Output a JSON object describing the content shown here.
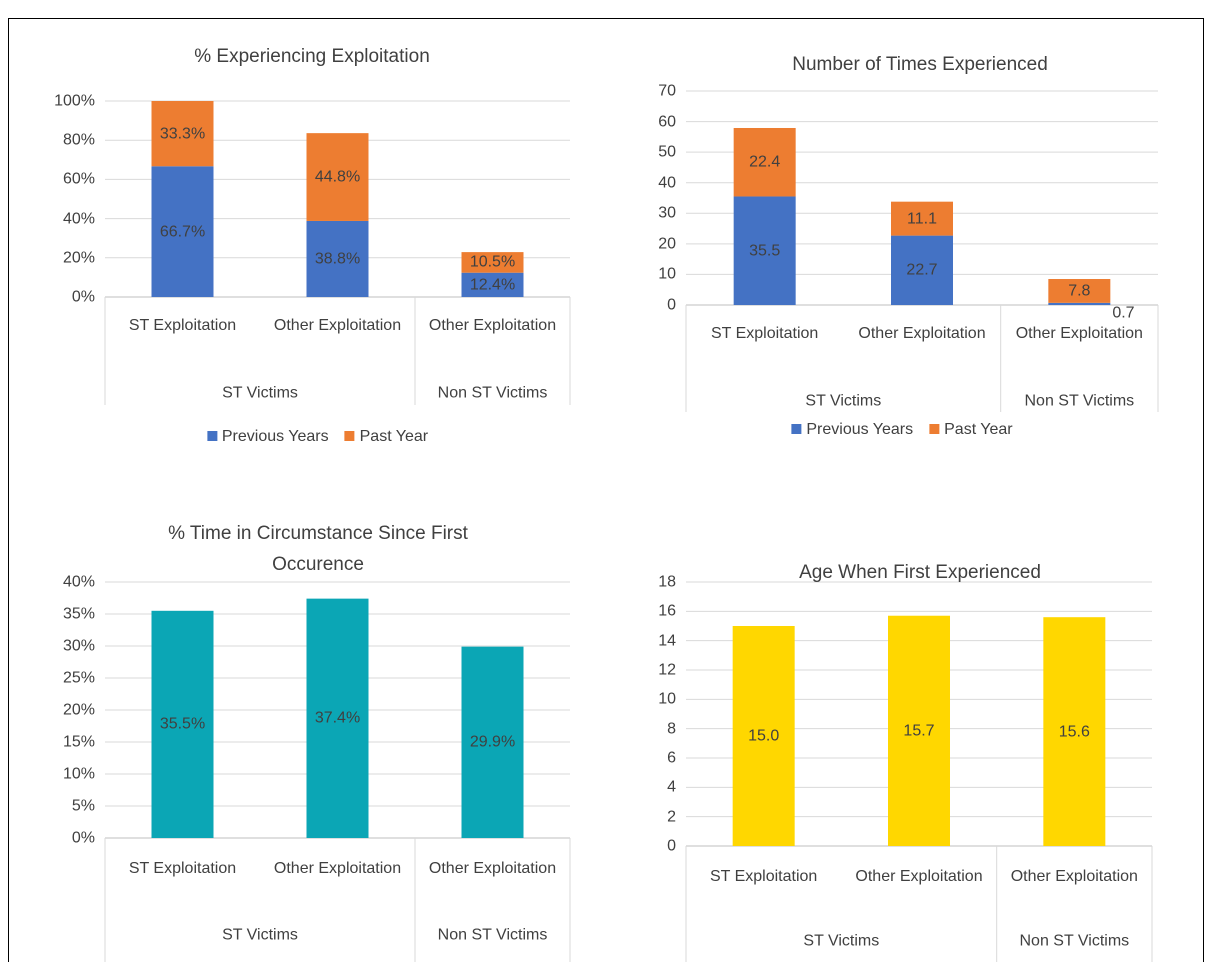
{
  "chart_data": [
    {
      "type": "stacked_bar",
      "title": "% Experiencing Exploitation",
      "categories": [
        "ST Exploitation",
        "Other Exploitation",
        "Other Exploitation"
      ],
      "category_groups": [
        "ST Victims",
        "ST Victims",
        "Non ST Victims"
      ],
      "series": [
        {
          "name": "Previous Years",
          "color": "#4472c4",
          "values": [
            66.7,
            38.8,
            12.4
          ],
          "value_labels": [
            "66.7%",
            "38.8%",
            "12.4%"
          ]
        },
        {
          "name": "Past Year",
          "color": "#ed7d31",
          "values": [
            33.3,
            44.8,
            10.5
          ],
          "value_labels": [
            "33.3%",
            "44.8%",
            "10.5%"
          ]
        }
      ],
      "ylim": [
        0,
        100
      ],
      "yticks": [
        {
          "value": 0,
          "label": "0%"
        },
        {
          "value": 20,
          "label": "20%"
        },
        {
          "value": 40,
          "label": "40%"
        },
        {
          "value": 60,
          "label": "60%"
        },
        {
          "value": 80,
          "label": "80%"
        },
        {
          "value": 100,
          "label": "100%"
        }
      ],
      "grid": true,
      "legend": "bottom"
    },
    {
      "type": "stacked_bar",
      "title": "Number of Times Experienced",
      "categories": [
        "ST Exploitation",
        "Other Exploitation",
        "Other Exploitation"
      ],
      "category_groups": [
        "ST Victims",
        "ST Victims",
        "Non ST Victims"
      ],
      "series": [
        {
          "name": "Previous Years",
          "color": "#4472c4",
          "values": [
            35.5,
            22.7,
            0.7
          ]
        },
        {
          "name": "Past Year",
          "color": "#ed7d31",
          "values": [
            22.4,
            11.1,
            7.8
          ]
        }
      ],
      "ylim": [
        0,
        70
      ],
      "yticks": [
        0,
        10,
        20,
        30,
        40,
        50,
        60,
        70
      ],
      "grid": true,
      "legend": "bottom"
    },
    {
      "type": "bar",
      "title": "% Time in Circumstance Since First Occurence",
      "categories": [
        "ST Exploitation",
        "Other Exploitation",
        "Other Exploitation"
      ],
      "category_groups": [
        "ST Victims",
        "ST Victims",
        "Non ST Victims"
      ],
      "values": [
        35.5,
        37.4,
        29.9
      ],
      "value_labels": [
        "35.5%",
        "37.4%",
        "29.9%"
      ],
      "color": "#0ba6b5",
      "ylim": [
        0,
        40
      ],
      "yticks": [
        {
          "value": 0,
          "label": "0%"
        },
        {
          "value": 5,
          "label": "5%"
        },
        {
          "value": 10,
          "label": "10%"
        },
        {
          "value": 15,
          "label": "15%"
        },
        {
          "value": 20,
          "label": "20%"
        },
        {
          "value": 25,
          "label": "25%"
        },
        {
          "value": 30,
          "label": "30%"
        },
        {
          "value": 35,
          "label": "35%"
        },
        {
          "value": 40,
          "label": "40%"
        }
      ],
      "grid": true
    },
    {
      "type": "bar",
      "title": "Age When First Experienced",
      "categories": [
        "ST Exploitation",
        "Other Exploitation",
        "Other Exploitation"
      ],
      "category_groups": [
        "ST Victims",
        "ST Victims",
        "Non ST Victims"
      ],
      "values": [
        15.0,
        15.7,
        15.6
      ],
      "value_labels": [
        "15.0",
        "15.7",
        "15.6"
      ],
      "color": "#ffd700",
      "ylim": [
        0,
        18
      ],
      "yticks": [
        0,
        2,
        4,
        6,
        8,
        10,
        12,
        14,
        16,
        18
      ],
      "grid": true
    }
  ]
}
